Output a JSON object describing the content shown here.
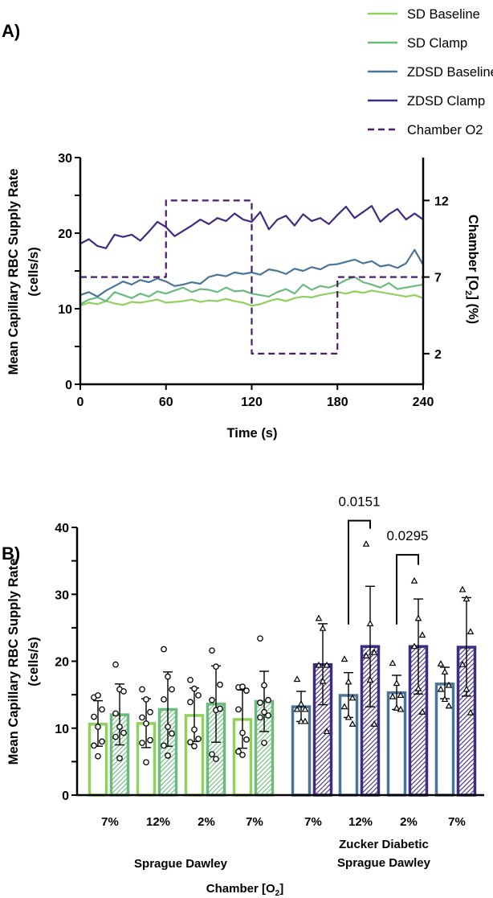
{
  "chart_data": [
    {
      "panel_label": "A)",
      "type": "line",
      "xlabel": "Time (s)",
      "ylabel": "Mean Capillary RBC Supply Rate",
      "ylabel_units": "(cells/s)",
      "y2label": "Chamber [O",
      "y2label_sub": "2",
      "y2label_end": "] (%)",
      "xlim": [
        0,
        240
      ],
      "ylim": [
        0,
        30
      ],
      "y2lim": [
        0,
        14.8
      ],
      "xticks": [
        0,
        60,
        120,
        180,
        240
      ],
      "yticks": [
        0,
        10,
        20,
        30
      ],
      "y2ticks": [
        2,
        7,
        12
      ],
      "legend_position": "top-right",
      "x_step": 6,
      "series": [
        {
          "name": "SD Baseline",
          "color": "#8fd15c",
          "dash": false,
          "values": [
            10.4,
            10.8,
            10.6,
            11.0,
            10.7,
            10.5,
            10.9,
            10.8,
            11.0,
            11.2,
            10.8,
            10.9,
            11.0,
            11.2,
            10.9,
            11.1,
            11.0,
            11.3,
            11.0,
            10.8,
            10.4,
            10.6,
            11.0,
            11.3,
            11.0,
            11.4,
            11.6,
            11.5,
            11.8,
            12.0,
            12.2,
            12.0,
            12.3,
            12.1,
            12.4,
            12.2,
            12.0,
            11.8,
            11.6,
            11.8,
            11.4
          ]
        },
        {
          "name": "SD Clamp",
          "color": "#6cba7d",
          "dash": false,
          "values": [
            10.6,
            11.2,
            11.5,
            11.0,
            12.2,
            11.8,
            11.4,
            12.0,
            11.6,
            12.3,
            12.0,
            12.4,
            12.8,
            12.2,
            12.6,
            12.5,
            12.2,
            12.8,
            12.3,
            12.4,
            12.0,
            11.8,
            11.6,
            12.2,
            12.6,
            12.0,
            13.2,
            12.5,
            13.0,
            12.8,
            13.2,
            13.8,
            14.2,
            13.5,
            13.2,
            12.8,
            13.4,
            12.6,
            12.8,
            13.0,
            13.2
          ]
        },
        {
          "name": "ZDSD Baseline",
          "color": "#4a7599",
          "dash": false,
          "values": [
            11.8,
            12.2,
            11.6,
            12.4,
            13.0,
            13.6,
            13.2,
            13.8,
            13.5,
            14.0,
            13.6,
            13.0,
            13.2,
            13.5,
            13.3,
            14.2,
            14.5,
            14.3,
            14.8,
            14.6,
            14.8,
            14.5,
            15.2,
            15.0,
            14.6,
            15.3,
            15.0,
            15.5,
            15.2,
            15.8,
            15.9,
            16.2,
            16.5,
            16.0,
            16.3,
            15.6,
            15.8,
            15.4,
            16.0,
            17.8,
            15.8
          ]
        },
        {
          "name": "ZDSD Clamp",
          "color": "#3f2b80",
          "dash": false,
          "values": [
            18.6,
            19.2,
            18.3,
            18.0,
            19.8,
            19.5,
            19.8,
            19.0,
            20.2,
            21.5,
            20.8,
            19.6,
            20.3,
            21.0,
            21.8,
            21.2,
            22.0,
            21.6,
            22.6,
            21.8,
            21.5,
            22.8,
            20.5,
            21.8,
            22.3,
            21.0,
            22.5,
            21.6,
            22.0,
            21.2,
            22.4,
            23.5,
            22.0,
            22.8,
            23.6,
            21.5,
            22.5,
            23.2,
            21.8,
            22.6,
            21.8
          ]
        },
        {
          "name": "Chamber O2",
          "color": "#4a1c6b",
          "dash": true,
          "axis": "right",
          "points": [
            [
              0,
              7
            ],
            [
              60,
              7
            ],
            [
              60,
              12
            ],
            [
              120,
              12
            ],
            [
              120,
              2
            ],
            [
              180,
              2
            ],
            [
              180,
              7
            ],
            [
              240,
              7
            ]
          ]
        }
      ]
    },
    {
      "panel_label": "B)",
      "type": "bar",
      "ylabel": "Mean Capillary RBC Supply Rate",
      "ylabel_units": "(cells/s)",
      "xlabel": "Chamber [O",
      "xlabel_sub": "2",
      "xlabel_end": "]",
      "ylim": [
        0,
        40
      ],
      "yticks": [
        0,
        10,
        20,
        30,
        40
      ],
      "categories": [
        "7%",
        "12%",
        "2%",
        "7%",
        "7%",
        "12%",
        "2%",
        "7%"
      ],
      "group_labels": [
        [
          "Sprague Dawley"
        ],
        [
          "Zucker Diabetic",
          "Sprague Dawley"
        ]
      ],
      "bars": [
        {
          "group": 0,
          "cat": 0,
          "cond": "Baseline",
          "value": 10.6,
          "err": [
            7.3,
            14.1
          ],
          "points": [
            14.6,
            14.9,
            12.8,
            11.7,
            10.2,
            8.0,
            7.4,
            5.8
          ]
        },
        {
          "group": 0,
          "cat": 0,
          "cond": "Clamp",
          "value": 12.0,
          "err": [
            7.5,
            16.6
          ],
          "points": [
            19.5,
            15.8,
            15.5,
            12.2,
            10.2,
            9.3,
            8.7,
            5.5
          ]
        },
        {
          "group": 0,
          "cat": 1,
          "cond": "Baseline",
          "value": 10.7,
          "err": [
            7.1,
            14.4
          ],
          "points": [
            15.8,
            14.3,
            12.4,
            11.6,
            10.7,
            8.2,
            7.8,
            4.9
          ]
        },
        {
          "group": 0,
          "cat": 1,
          "cond": "Clamp",
          "value": 12.8,
          "err": [
            7.3,
            18.4
          ],
          "points": [
            21.8,
            17.7,
            15.8,
            14.3,
            10.2,
            9.2,
            7.4,
            5.9
          ]
        },
        {
          "group": 0,
          "cat": 2,
          "cond": "Baseline",
          "value": 11.9,
          "err": [
            8.0,
            16.0
          ],
          "points": [
            17.2,
            15.9,
            14.9,
            13.9,
            9.8,
            8.4,
            7.9,
            7.3
          ]
        },
        {
          "group": 0,
          "cat": 2,
          "cond": "Clamp",
          "value": 13.6,
          "err": [
            7.9,
            19.3
          ],
          "points": [
            21.6,
            19.2,
            16.5,
            14.2,
            12.7,
            12.9,
            6.1,
            5.4
          ]
        },
        {
          "group": 0,
          "cat": 3,
          "cond": "Baseline",
          "value": 11.3,
          "err": [
            7.0,
            15.7
          ],
          "points": [
            16.1,
            16.2,
            15.6,
            12.8,
            9.3,
            8.3,
            6.5,
            6.0
          ]
        },
        {
          "group": 0,
          "cat": 3,
          "cond": "Clamp",
          "value": 14.0,
          "err": [
            9.5,
            18.5
          ],
          "points": [
            23.4,
            16.4,
            14.2,
            13.8,
            12.4,
            11.9,
            11.6,
            7.8
          ]
        },
        {
          "group": 1,
          "cat": 4,
          "cond": "Baseline",
          "value": 13.2,
          "err": [
            11.0,
            15.5
          ],
          "points": [
            17.3,
            13.6,
            12.8,
            12.8,
            11.0,
            11.0
          ]
        },
        {
          "group": 1,
          "cat": 4,
          "cond": "Clamp",
          "value": 19.5,
          "err": [
            13.5,
            25.6
          ],
          "points": [
            26.4,
            24.9,
            19.4,
            19.4,
            17.0,
            9.5
          ]
        },
        {
          "group": 1,
          "cat": 5,
          "cond": "Baseline",
          "value": 14.9,
          "err": [
            11.6,
            18.3
          ],
          "points": [
            20.3,
            16.9,
            14.5,
            13.2,
            11.6,
            10.6
          ]
        },
        {
          "group": 1,
          "cat": 5,
          "cond": "Clamp",
          "value": 22.2,
          "err": [
            13.2,
            31.2
          ],
          "points": [
            37.5,
            25.6,
            21.3,
            20.8,
            17.2,
            10.6
          ]
        },
        {
          "group": 1,
          "cat": 6,
          "cond": "Baseline",
          "value": 15.3,
          "err": [
            12.8,
            17.9
          ],
          "points": [
            19.7,
            16.7,
            14.9,
            14.7,
            13.0,
            12.8
          ]
        },
        {
          "group": 1,
          "cat": 6,
          "cond": "Clamp",
          "value": 22.2,
          "err": [
            15.1,
            29.3
          ],
          "points": [
            32.0,
            26.4,
            23.9,
            22.2,
            15.9,
            12.4
          ]
        },
        {
          "group": 1,
          "cat": 7,
          "cond": "Baseline",
          "value": 16.6,
          "err": [
            14.4,
            19.1
          ],
          "points": [
            19.6,
            18.4,
            16.4,
            15.8,
            14.3,
            13.3
          ]
        },
        {
          "group": 1,
          "cat": 7,
          "cond": "Clamp",
          "value": 22.1,
          "err": [
            14.8,
            29.5
          ],
          "points": [
            30.7,
            29.3,
            24.4,
            19.5,
            15.8,
            12.3
          ]
        }
      ],
      "colors": {
        "sd_baseline": "#8fd15c",
        "sd_clamp": "#6cba7d",
        "zd_baseline": "#4a7599",
        "zd_clamp": "#3f2b80"
      },
      "annotations": [
        {
          "text": "0.0151",
          "cat": 5,
          "top": 41,
          "left_end": 25.5,
          "right_end": 39.8
        },
        {
          "text": "0.0295",
          "cat": 6,
          "top": 35.9,
          "left_end": 25.5,
          "right_end": 34.4
        }
      ]
    }
  ]
}
